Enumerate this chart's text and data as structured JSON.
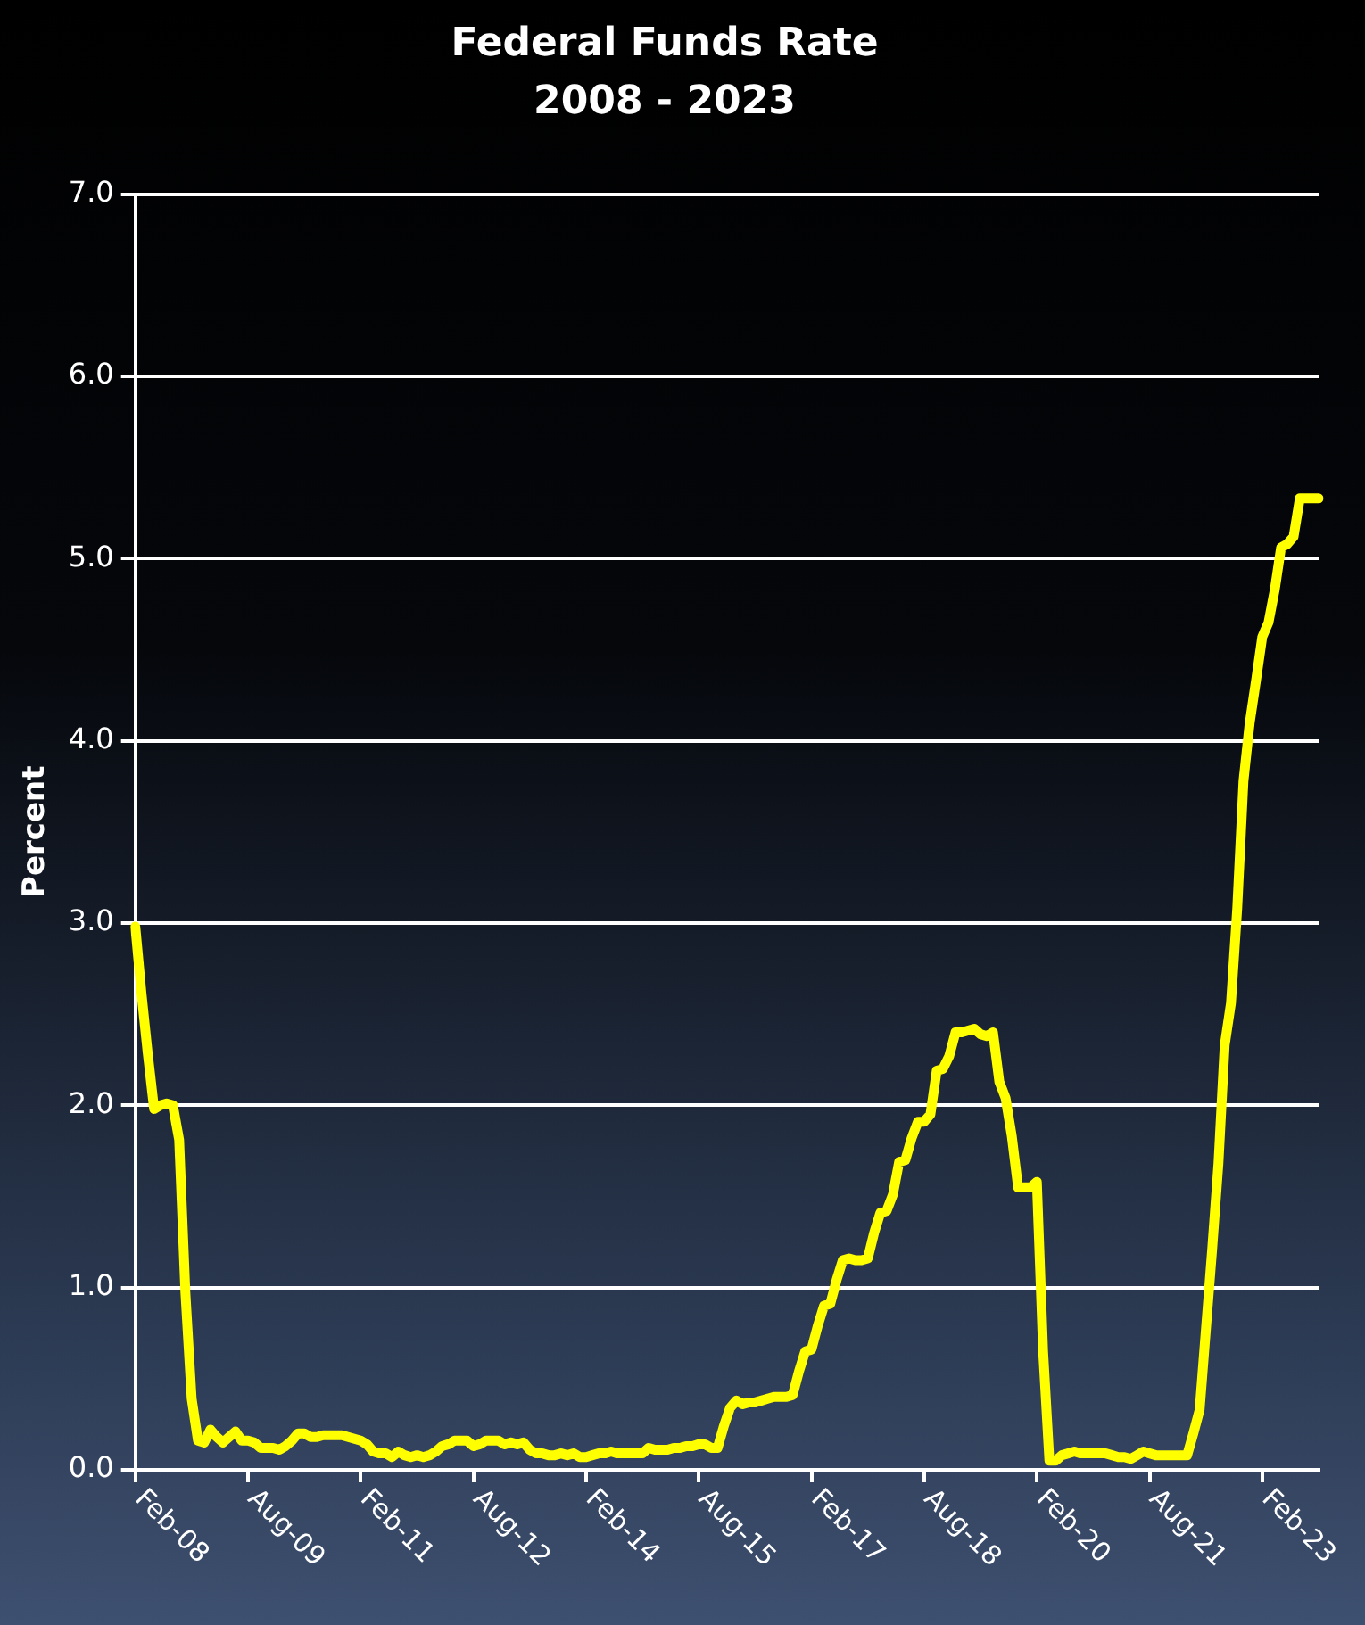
{
  "chart_data": {
    "type": "line",
    "title": "Federal Funds Rate",
    "subtitle": "2008 - 2023",
    "ylabel": "Percent",
    "categories": [
      "Feb-08",
      null,
      null,
      null,
      null,
      null,
      null,
      null,
      null,
      null,
      null,
      null,
      null,
      null,
      null,
      null,
      null,
      null,
      "Aug-09",
      null,
      null,
      null,
      null,
      null,
      null,
      null,
      null,
      null,
      null,
      null,
      null,
      null,
      null,
      null,
      null,
      null,
      "Feb-11",
      null,
      null,
      null,
      null,
      null,
      null,
      null,
      null,
      null,
      null,
      null,
      null,
      null,
      null,
      null,
      null,
      null,
      "Aug-12",
      null,
      null,
      null,
      null,
      null,
      null,
      null,
      null,
      null,
      null,
      null,
      null,
      null,
      null,
      null,
      null,
      null,
      "Feb-14",
      null,
      null,
      null,
      null,
      null,
      null,
      null,
      null,
      null,
      null,
      null,
      null,
      null,
      null,
      null,
      null,
      null,
      "Aug-15",
      null,
      null,
      null,
      null,
      null,
      null,
      null,
      null,
      null,
      null,
      null,
      null,
      null,
      null,
      null,
      null,
      null,
      "Feb-17",
      null,
      null,
      null,
      null,
      null,
      null,
      null,
      null,
      null,
      null,
      null,
      null,
      null,
      null,
      null,
      null,
      null,
      "Aug-18",
      null,
      null,
      null,
      null,
      null,
      null,
      null,
      null,
      null,
      null,
      null,
      null,
      null,
      null,
      null,
      null,
      null,
      "Feb-20",
      null,
      null,
      null,
      null,
      null,
      null,
      null,
      null,
      null,
      null,
      null,
      null,
      null,
      null,
      null,
      null,
      null,
      "Aug-21",
      null,
      null,
      null,
      null,
      null,
      null,
      null,
      null,
      null,
      null,
      null,
      null,
      null,
      null,
      null,
      null,
      null,
      "Feb-23",
      null,
      null,
      null,
      null,
      null,
      null,
      null,
      null,
      null
    ],
    "series": [
      {
        "color": "#ffff00",
        "values": [
          2.98,
          2.61,
          2.28,
          1.98,
          2.0,
          2.01,
          2.0,
          1.81,
          0.97,
          0.39,
          0.16,
          0.15,
          0.22,
          0.18,
          0.15,
          0.18,
          0.21,
          0.16,
          0.16,
          0.15,
          0.12,
          0.12,
          0.12,
          0.11,
          0.13,
          0.16,
          0.2,
          0.2,
          0.18,
          0.18,
          0.19,
          0.19,
          0.19,
          0.19,
          0.18,
          0.17,
          0.16,
          0.14,
          0.1,
          0.09,
          0.09,
          0.07,
          0.1,
          0.08,
          0.07,
          0.08,
          0.07,
          0.08,
          0.1,
          0.13,
          0.14,
          0.16,
          0.16,
          0.16,
          0.13,
          0.14,
          0.16,
          0.16,
          0.16,
          0.14,
          0.15,
          0.14,
          0.15,
          0.11,
          0.09,
          0.09,
          0.08,
          0.08,
          0.09,
          0.08,
          0.09,
          0.07,
          0.07,
          0.08,
          0.09,
          0.09,
          0.1,
          0.09,
          0.09,
          0.09,
          0.09,
          0.09,
          0.12,
          0.11,
          0.11,
          0.11,
          0.12,
          0.12,
          0.13,
          0.13,
          0.14,
          0.14,
          0.12,
          0.12,
          0.24,
          0.34,
          0.38,
          0.36,
          0.37,
          0.37,
          0.38,
          0.39,
          0.4,
          0.4,
          0.4,
          0.41,
          0.54,
          0.65,
          0.66,
          0.79,
          0.9,
          0.91,
          1.04,
          1.15,
          1.16,
          1.15,
          1.15,
          1.16,
          1.3,
          1.41,
          1.42,
          1.51,
          1.69,
          1.7,
          1.82,
          1.91,
          1.91,
          1.95,
          2.19,
          2.2,
          2.27,
          2.4,
          2.4,
          2.41,
          2.42,
          2.39,
          2.38,
          2.4,
          2.13,
          2.04,
          1.83,
          1.55,
          1.55,
          1.55,
          1.58,
          0.65,
          0.05,
          0.05,
          0.08,
          0.09,
          0.1,
          0.09,
          0.09,
          0.09,
          0.09,
          0.09,
          0.08,
          0.07,
          0.07,
          0.06,
          0.08,
          0.1,
          0.09,
          0.08,
          0.08,
          0.08,
          0.08,
          0.08,
          0.08,
          0.2,
          0.33,
          0.77,
          1.21,
          1.68,
          2.33,
          2.56,
          3.08,
          3.78,
          4.1,
          4.33,
          4.57,
          4.65,
          4.83,
          5.06,
          5.08,
          5.12,
          5.33,
          5.33,
          5.33,
          5.33
        ]
      }
    ],
    "ylim": [
      0,
      7
    ],
    "yticks": [
      {
        "value": 0,
        "label": "0.0"
      },
      {
        "value": 1,
        "label": "1.0"
      },
      {
        "value": 2,
        "label": "2.0"
      },
      {
        "value": 3,
        "label": "3.0"
      },
      {
        "value": 4,
        "label": "4.0"
      },
      {
        "value": 5,
        "label": "5.0"
      },
      {
        "value": 6,
        "label": "6.0"
      },
      {
        "value": 7,
        "label": "7.0"
      }
    ],
    "grid": "y"
  }
}
